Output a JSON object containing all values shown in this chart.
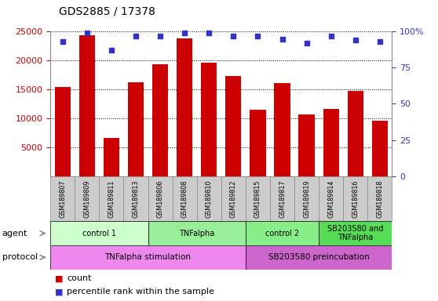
{
  "title": "GDS2885 / 17378",
  "samples": [
    "GSM189807",
    "GSM189809",
    "GSM189811",
    "GSM189813",
    "GSM189806",
    "GSM189808",
    "GSM189810",
    "GSM189812",
    "GSM189815",
    "GSM189817",
    "GSM189819",
    "GSM189814",
    "GSM189816",
    "GSM189818"
  ],
  "counts": [
    15400,
    24400,
    6600,
    16200,
    19400,
    23800,
    19600,
    17300,
    11500,
    16100,
    10600,
    11600,
    14800,
    9600
  ],
  "percentile": [
    93,
    99,
    87,
    97,
    97,
    99,
    99,
    97,
    97,
    95,
    92,
    97,
    94,
    93
  ],
  "ylim_left": [
    0,
    25000
  ],
  "ylim_right": [
    0,
    100
  ],
  "yticks_left": [
    5000,
    10000,
    15000,
    20000,
    25000
  ],
  "yticks_right": [
    0,
    25,
    50,
    75,
    100
  ],
  "bar_color": "#cc0000",
  "dot_color": "#3333cc",
  "agent_groups": [
    {
      "label": "control 1",
      "start": 0,
      "end": 4,
      "color": "#ccffcc"
    },
    {
      "label": "TNFalpha",
      "start": 4,
      "end": 8,
      "color": "#99ee99"
    },
    {
      "label": "control 2",
      "start": 8,
      "end": 11,
      "color": "#88ee88"
    },
    {
      "label": "SB203580 and\nTNFalpha",
      "start": 11,
      "end": 14,
      "color": "#55dd55"
    }
  ],
  "protocol_groups": [
    {
      "label": "TNFalpha stimulation",
      "start": 0,
      "end": 8,
      "color": "#ee88ee"
    },
    {
      "label": "SB203580 preincubation",
      "start": 8,
      "end": 14,
      "color": "#cc66cc"
    }
  ],
  "legend_count_label": "count",
  "legend_pct_label": "percentile rank within the sample",
  "background_color": "#ffffff",
  "grid_color": "#000000",
  "bar_color_legend": "#cc0000",
  "dot_color_legend": "#3333cc"
}
